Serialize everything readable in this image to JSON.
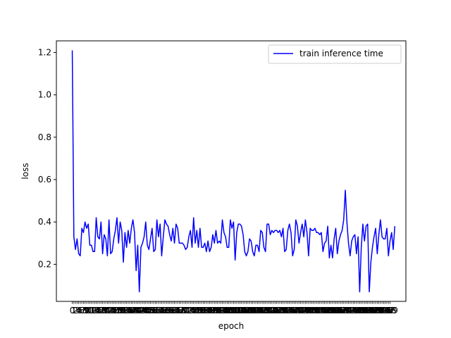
{
  "chart_data": {
    "type": "line",
    "title": "",
    "xlabel": "epoch",
    "ylabel": "loss",
    "x_start": 0,
    "x_end": 199,
    "xlim": [
      -9.95,
      208.95
    ],
    "ylim": [
      0.025,
      1.255
    ],
    "yticks": [
      0.2,
      0.4,
      0.6,
      0.8,
      1.0,
      1.2
    ],
    "ytick_labels": [
      "0.2",
      "0.4",
      "0.6",
      "0.8",
      "1.0",
      "1.2"
    ],
    "xtick_labels_visible": [
      "0",
      "1",
      "2",
      "3",
      "4",
      "5",
      "199"
    ],
    "grid": false,
    "legend": {
      "position": "top-right"
    },
    "series": [
      {
        "name": "train inference time",
        "color": "#0000ff",
        "values": [
          1.21,
          0.33,
          0.27,
          0.32,
          0.25,
          0.24,
          0.37,
          0.35,
          0.4,
          0.37,
          0.39,
          0.29,
          0.29,
          0.26,
          0.26,
          0.42,
          0.33,
          0.32,
          0.4,
          0.25,
          0.34,
          0.32,
          0.24,
          0.41,
          0.25,
          0.26,
          0.32,
          0.36,
          0.42,
          0.3,
          0.4,
          0.36,
          0.21,
          0.35,
          0.28,
          0.36,
          0.3,
          0.37,
          0.41,
          0.35,
          0.17,
          0.29,
          0.07,
          0.28,
          0.3,
          0.33,
          0.4,
          0.29,
          0.27,
          0.32,
          0.37,
          0.26,
          0.27,
          0.41,
          0.33,
          0.39,
          0.24,
          0.33,
          0.41,
          0.39,
          0.38,
          0.34,
          0.31,
          0.37,
          0.3,
          0.39,
          0.37,
          0.3,
          0.3,
          0.3,
          0.29,
          0.27,
          0.28,
          0.33,
          0.36,
          0.28,
          0.42,
          0.3,
          0.36,
          0.28,
          0.37,
          0.28,
          0.28,
          0.3,
          0.26,
          0.31,
          0.26,
          0.28,
          0.34,
          0.3,
          0.36,
          0.3,
          0.31,
          0.3,
          0.41,
          0.35,
          0.33,
          0.28,
          0.28,
          0.41,
          0.37,
          0.4,
          0.22,
          0.35,
          0.39,
          0.39,
          0.38,
          0.34,
          0.26,
          0.24,
          0.26,
          0.32,
          0.31,
          0.26,
          0.24,
          0.29,
          0.29,
          0.26,
          0.36,
          0.35,
          0.28,
          0.26,
          0.39,
          0.39,
          0.34,
          0.36,
          0.35,
          0.36,
          0.36,
          0.35,
          0.36,
          0.33,
          0.37,
          0.26,
          0.27,
          0.36,
          0.39,
          0.35,
          0.24,
          0.27,
          0.41,
          0.38,
          0.3,
          0.35,
          0.39,
          0.33,
          0.41,
          0.35,
          0.24,
          0.37,
          0.36,
          0.36,
          0.37,
          0.35,
          0.35,
          0.34,
          0.35,
          0.26,
          0.3,
          0.31,
          0.38,
          0.23,
          0.29,
          0.23,
          0.32,
          0.37,
          0.25,
          0.31,
          0.34,
          0.36,
          0.41,
          0.55,
          0.4,
          0.3,
          0.24,
          0.31,
          0.33,
          0.34,
          0.25,
          0.33,
          0.07,
          0.28,
          0.39,
          0.31,
          0.38,
          0.39,
          0.07,
          0.21,
          0.28,
          0.33,
          0.37,
          0.25,
          0.34,
          0.41,
          0.33,
          0.32,
          0.32,
          0.37,
          0.24,
          0.31,
          0.35,
          0.27,
          0.38
        ]
      }
    ]
  }
}
